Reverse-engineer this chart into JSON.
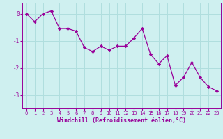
{
  "x": [
    0,
    1,
    2,
    3,
    4,
    5,
    6,
    7,
    8,
    9,
    10,
    11,
    12,
    13,
    14,
    15,
    16,
    17,
    18,
    19,
    20,
    21,
    22,
    23
  ],
  "y": [
    0.0,
    -0.3,
    0.0,
    0.1,
    -0.55,
    -0.55,
    -0.65,
    -1.25,
    -1.4,
    -1.2,
    -1.35,
    -1.2,
    -1.2,
    -0.9,
    -0.55,
    -1.5,
    -1.85,
    -1.55,
    -2.65,
    -2.35,
    -1.8,
    -2.35,
    -2.7,
    -2.85
  ],
  "line_color": "#990099",
  "marker": "D",
  "marker_size": 2.2,
  "bg_color": "#cff0f0",
  "grid_color": "#b0dede",
  "xlabel": "Windchill (Refroidissement éolien,°C)",
  "xlabel_color": "#990099",
  "tick_color": "#990099",
  "label_color": "#990099",
  "ylim": [
    -3.5,
    0.4
  ],
  "yticks": [
    0,
    -1,
    -2,
    -3
  ],
  "xlim": [
    -0.5,
    23.5
  ],
  "xticks": [
    0,
    1,
    2,
    3,
    4,
    5,
    6,
    7,
    8,
    9,
    10,
    11,
    12,
    13,
    14,
    15,
    16,
    17,
    18,
    19,
    20,
    21,
    22,
    23
  ],
  "tick_fontsize": 5.0,
  "xlabel_fontsize": 6.0
}
